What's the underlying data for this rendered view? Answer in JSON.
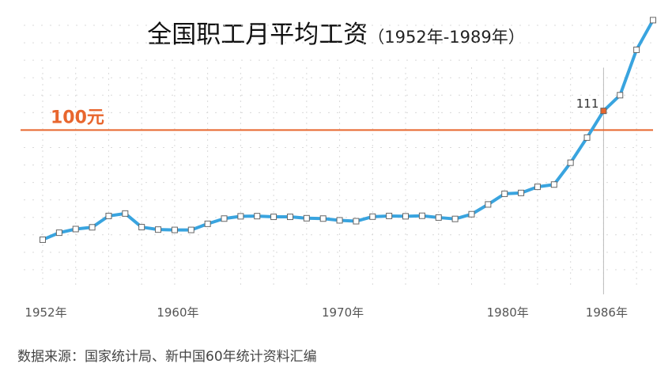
{
  "header": {
    "title": "全国职工月平均工资",
    "subtitle": "（1952年-1989年）"
  },
  "footer": {
    "source": "数据来源：国家统计局、新中国60年统计资料汇编"
  },
  "colors": {
    "line": "#39a4df",
    "reference": "#e8662e",
    "marker_fill": "#ffffff",
    "marker_stroke": "#666666",
    "highlight": "#e8662e",
    "grid": "#d9d9d9",
    "cursor": "#bbbbbb"
  },
  "chart_data": {
    "type": "line",
    "x": [
      1952,
      1953,
      1954,
      1955,
      1956,
      1957,
      1958,
      1959,
      1960,
      1961,
      1962,
      1963,
      1964,
      1965,
      1966,
      1967,
      1968,
      1969,
      1970,
      1971,
      1972,
      1973,
      1974,
      1975,
      1976,
      1977,
      1978,
      1979,
      1980,
      1981,
      1982,
      1983,
      1984,
      1985,
      1986,
      1987,
      1988,
      1989
    ],
    "series": [
      {
        "values": [
          37.2,
          41.2,
          43.3,
          44.3,
          50.8,
          52.2,
          44.4,
          43.0,
          42.8,
          42.8,
          46.3,
          49.3,
          50.6,
          50.7,
          50.3,
          50.3,
          49.5,
          49.3,
          48.3,
          47.8,
          50.4,
          50.8,
          50.6,
          50.9,
          49.9,
          49.1,
          51.8,
          57.4,
          63.5,
          64.0,
          67.5,
          68.8,
          81.3,
          95.7,
          111.0,
          120.0,
          146.0,
          163.0
        ]
      }
    ],
    "xlim": [
      1952,
      1989
    ],
    "ylim": [
      0,
      170
    ],
    "x_ticks": [
      {
        "value": 1952,
        "label": "1952年"
      },
      {
        "value": 1960,
        "label": "1960年"
      },
      {
        "value": 1970,
        "label": "1970年"
      },
      {
        "value": 1980,
        "label": "1980年"
      },
      {
        "value": 1986,
        "label": "1986年"
      }
    ],
    "reference_line": {
      "value": 100,
      "label": "100元"
    },
    "highlight": {
      "x": 1986,
      "label": "111"
    },
    "grid": true
  }
}
